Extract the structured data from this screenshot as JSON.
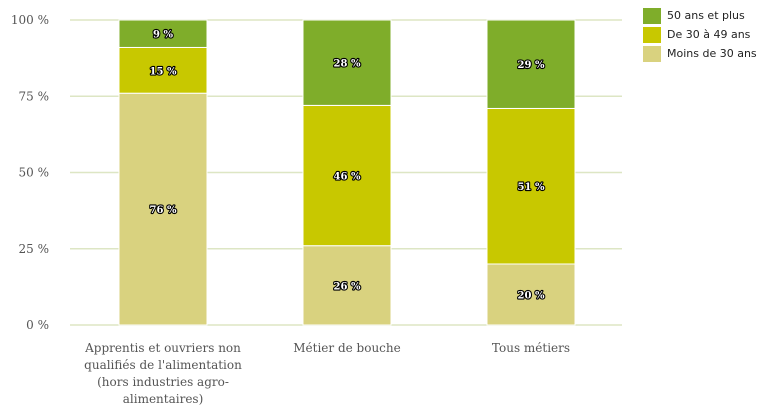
{
  "chart_data": {
    "type": "bar",
    "stacked": true,
    "percent": true,
    "ylim": [
      0,
      100
    ],
    "yticks": [
      "0 %",
      "25 %",
      "50 %",
      "75 %",
      "100 %"
    ],
    "ytick_values": [
      0,
      25,
      50,
      75,
      100
    ],
    "categories": [
      "Apprentis et ouvriers non qualifiés de l'alimentation (hors industries agro-alimentaires)",
      "Métier de bouche",
      "Tous métiers"
    ],
    "category_lines": [
      [
        "Apprentis et ouvriers non",
        "qualifiés de l'alimentation",
        "(hors industries agro-",
        "alimentaires)"
      ],
      [
        "Métier de bouche"
      ],
      [
        "Tous métiers"
      ]
    ],
    "series": [
      {
        "name": "Moins de 30 ans",
        "color": "#d9d27f",
        "values": [
          76,
          26,
          20
        ],
        "labels": [
          "76 %",
          "26 %",
          "20 %"
        ]
      },
      {
        "name": "De 30 à 49 ans",
        "color": "#c8c800",
        "values": [
          15,
          46,
          51
        ],
        "labels": [
          "15 %",
          "46 %",
          "51 %"
        ]
      },
      {
        "name": "50 ans et plus",
        "color": "#7fad2a",
        "values": [
          9,
          28,
          29
        ],
        "labels": [
          "9 %",
          "28 %",
          "29 %"
        ]
      }
    ],
    "legend_position": "top-right",
    "grid": true
  }
}
